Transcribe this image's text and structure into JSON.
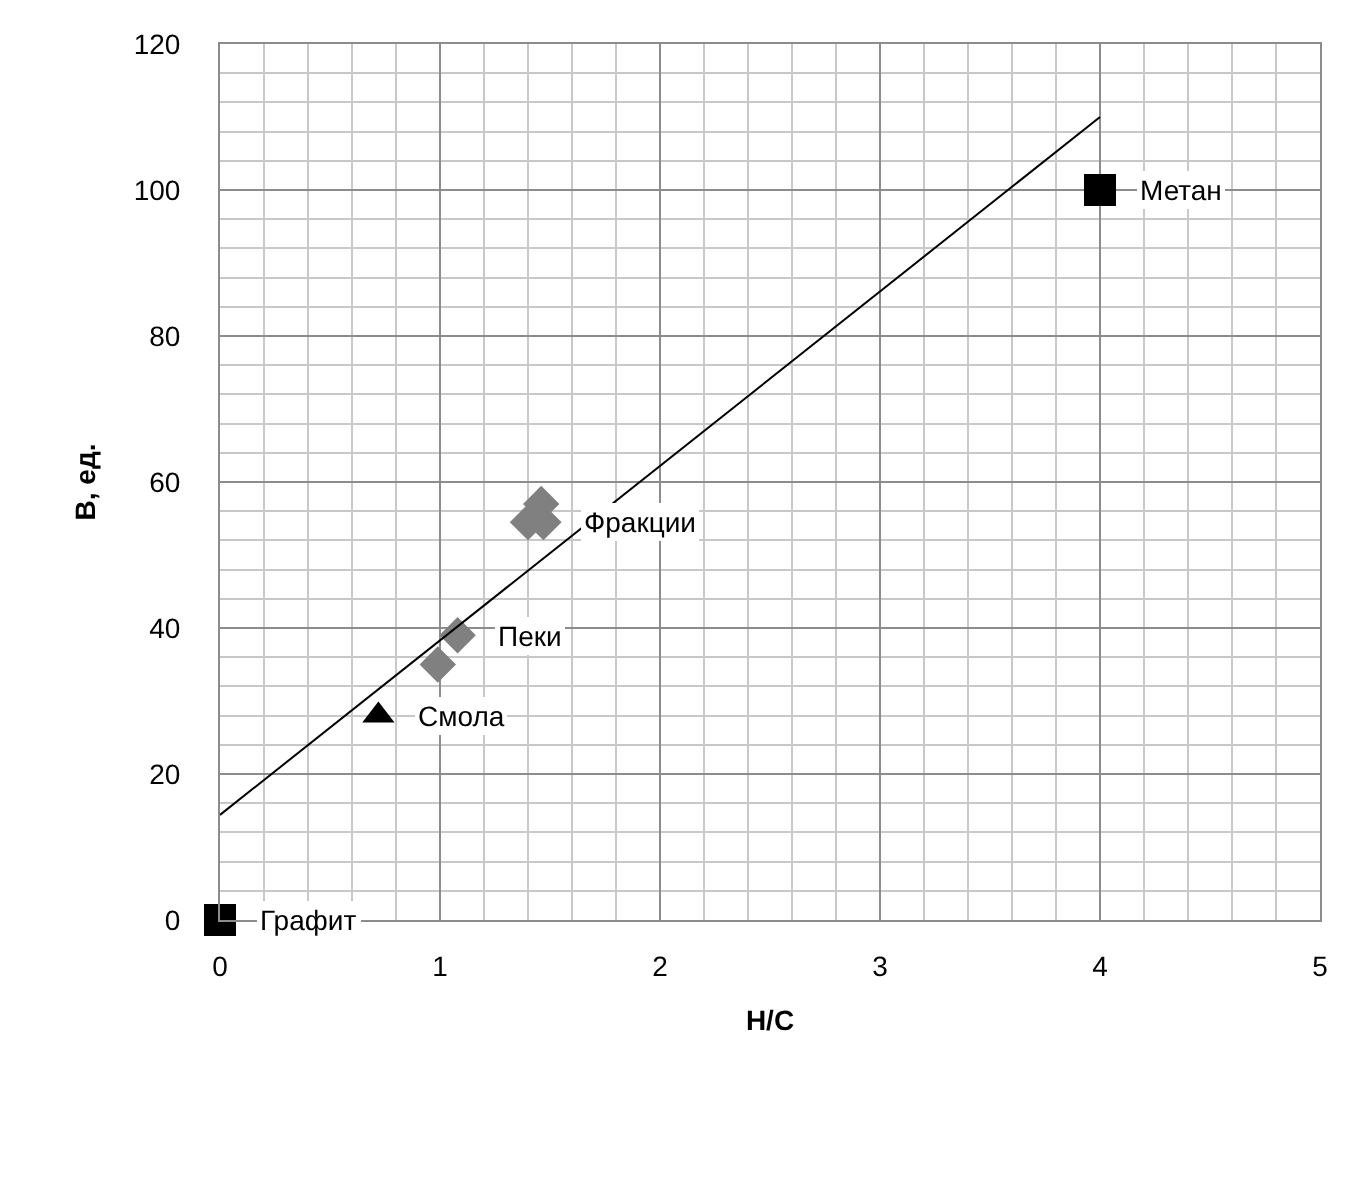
{
  "chart_data": {
    "type": "scatter",
    "xlabel": "Н/С",
    "ylabel": "В, ед.",
    "xlim": [
      0,
      5
    ],
    "xticks": [
      0,
      1,
      2,
      3,
      4,
      5
    ],
    "ylim": [
      0,
      120
    ],
    "yticks": [
      0,
      20,
      40,
      60,
      80,
      100,
      120
    ],
    "grid": true,
    "legend": false,
    "series": [
      {
        "name": "Графит",
        "color": "#000000",
        "marker": "square",
        "x": [
          0
        ],
        "values": [
          0
        ]
      },
      {
        "name": "Смола",
        "color": "#000000",
        "marker": "triangle",
        "x": [
          0.72
        ],
        "values": [
          28
        ]
      },
      {
        "name": "Пеки",
        "color": "#808080",
        "marker": "diamond",
        "x": [
          0.99,
          1.08
        ],
        "values": [
          35,
          39
        ]
      },
      {
        "name": "Фракции",
        "color": "#808080",
        "marker": "diamond",
        "x": [
          1.4,
          1.46,
          1.47
        ],
        "values": [
          54.5,
          57,
          54.5
        ]
      },
      {
        "name": "Метан",
        "color": "#000000",
        "marker": "square",
        "x": [
          4
        ],
        "values": [
          100
        ]
      },
      {
        "type": "line",
        "color": "#000000",
        "marker": "none",
        "x": [
          0,
          4
        ],
        "values": [
          14.4,
          110
        ]
      }
    ]
  }
}
